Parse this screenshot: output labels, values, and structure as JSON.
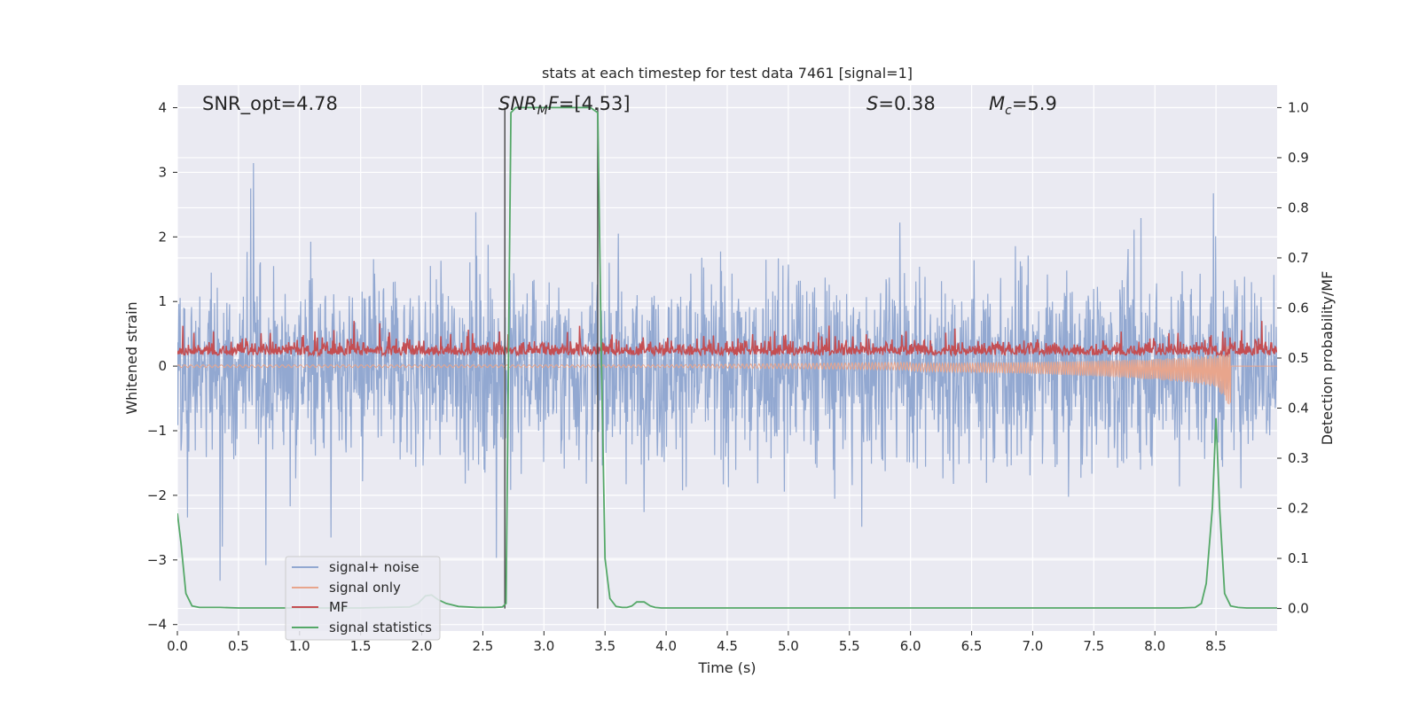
{
  "chart_data": {
    "type": "line",
    "title": "stats at each timestep for test data 7461 [signal=1]",
    "xlabel": "Time (s)",
    "ylabel_left": "Whitened strain",
    "ylabel_right": "Detection probability/MF",
    "xlim": [
      0,
      9.0
    ],
    "ylim_left": [
      -4.1,
      4.35
    ],
    "ylim_right": [
      -0.045,
      1.045
    ],
    "x_ticks": [
      "0.0",
      "0.5",
      "1.0",
      "1.5",
      "2.0",
      "2.5",
      "3.0",
      "3.5",
      "4.0",
      "4.5",
      "5.0",
      "5.5",
      "6.0",
      "6.5",
      "7.0",
      "7.5",
      "8.0",
      "8.5"
    ],
    "y_left_ticks": [
      "4",
      "3",
      "2",
      "1",
      "0",
      "−1",
      "−2",
      "−3",
      "−4"
    ],
    "y_right_ticks": [
      "1.0",
      "0.9",
      "0.8",
      "0.7",
      "0.6",
      "0.5",
      "0.4",
      "0.3",
      "0.2",
      "0.1",
      "0.0"
    ],
    "grid": true,
    "legend_position": "lower-left",
    "annotations": {
      "snr_opt": "SNR_opt=4.78",
      "snr_mf": "=[4.53]",
      "s": "=0.38",
      "mc": "=5.9"
    },
    "vertical_lines_x": [
      2.68,
      3.44
    ],
    "series": [
      {
        "name": "signal+ noise",
        "color": "#92a8d1",
        "axis": "left",
        "description_values": {
          "typical_range": [
            -2.0,
            2.0
          ],
          "max": 4.0,
          "min": -3.5
        }
      },
      {
        "name": "signal only",
        "color": "#e8a58c",
        "axis": "left",
        "envelope": {
          "x": [
            0,
            4.0,
            5.0,
            6.0,
            7.0,
            7.5,
            8.0,
            8.3,
            8.5,
            8.62
          ],
          "amp": [
            0.02,
            0.02,
            0.04,
            0.06,
            0.09,
            0.12,
            0.16,
            0.2,
            0.25,
            0.5
          ]
        }
      },
      {
        "name": "MF",
        "color": "#c44e52",
        "axis": "left",
        "description_values": {
          "baseline": 0.25,
          "max": 0.98,
          "min": 0.0
        }
      },
      {
        "name": "signal statistics",
        "color": "#55a868",
        "axis": "right",
        "x": [
          0.0,
          0.03,
          0.07,
          0.12,
          0.18,
          0.25,
          0.35,
          0.5,
          1.0,
          1.5,
          1.9,
          1.97,
          2.03,
          2.08,
          2.13,
          2.2,
          2.3,
          2.45,
          2.6,
          2.66,
          2.69,
          2.73,
          2.77,
          2.85,
          3.0,
          3.3,
          3.38,
          3.44,
          3.47,
          3.5,
          3.54,
          3.59,
          3.64,
          3.68,
          3.72,
          3.76,
          3.82,
          3.87,
          3.91,
          3.96,
          4.05,
          4.5,
          5.5,
          6.5,
          7.5,
          8.2,
          8.33,
          8.38,
          8.42,
          8.47,
          8.5,
          8.53,
          8.57,
          8.62,
          8.68,
          8.75,
          8.85,
          9.0
        ],
        "values": [
          0.19,
          0.13,
          0.03,
          0.005,
          0.002,
          0.002,
          0.002,
          0.001,
          0.001,
          0.001,
          0.003,
          0.01,
          0.025,
          0.027,
          0.018,
          0.01,
          0.004,
          0.002,
          0.002,
          0.003,
          0.01,
          0.99,
          1.0,
          1.0,
          1.0,
          1.0,
          1.0,
          0.99,
          0.5,
          0.1,
          0.02,
          0.004,
          0.002,
          0.002,
          0.005,
          0.013,
          0.013,
          0.005,
          0.002,
          0.001,
          0.001,
          0.001,
          0.001,
          0.001,
          0.001,
          0.001,
          0.002,
          0.01,
          0.05,
          0.2,
          0.38,
          0.2,
          0.03,
          0.005,
          0.002,
          0.001,
          0.001,
          0.001
        ]
      }
    ]
  }
}
